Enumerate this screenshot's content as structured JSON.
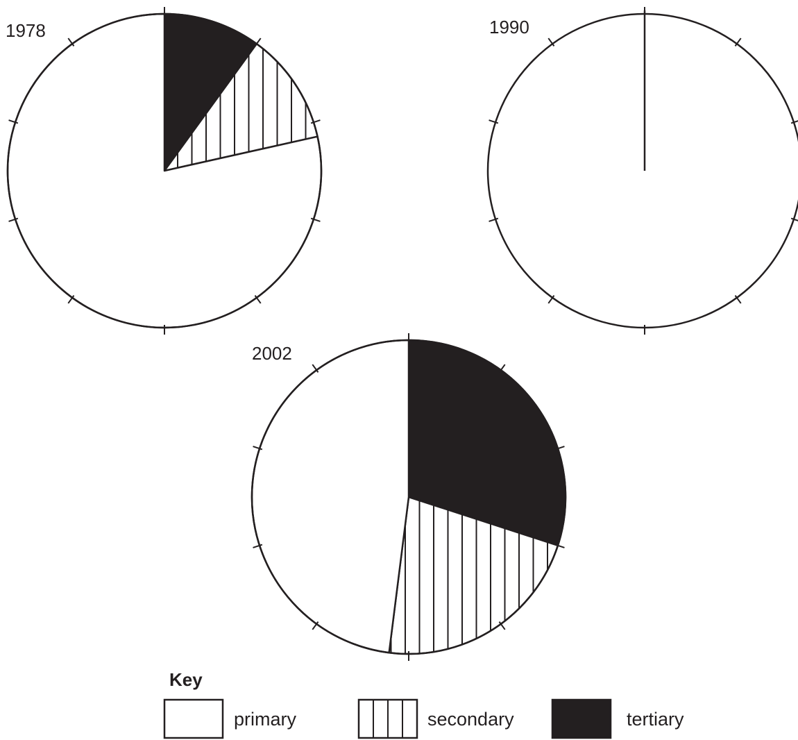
{
  "chart_data": [
    {
      "type": "pie",
      "title": "1978",
      "categories": [
        "primary",
        "secondary",
        "tertiary"
      ],
      "values": [
        78.5,
        11.5,
        10
      ],
      "ticks": 10
    },
    {
      "type": "pie",
      "title": "1990",
      "categories": [
        "primary",
        "secondary",
        "tertiary"
      ],
      "values": [
        null,
        null,
        null
      ],
      "ticks": 10
    },
    {
      "type": "pie",
      "title": "2002",
      "categories": [
        "primary",
        "secondary",
        "tertiary"
      ],
      "values": [
        48,
        22,
        30
      ],
      "ticks": 10
    }
  ],
  "key": {
    "title": "Key",
    "items": [
      {
        "label": "primary",
        "pattern": "white"
      },
      {
        "label": "secondary",
        "pattern": "vertical-lines"
      },
      {
        "label": "tertiary",
        "pattern": "black"
      }
    ]
  },
  "colors": {
    "ink": "#231f20",
    "background": "#ffffff"
  }
}
